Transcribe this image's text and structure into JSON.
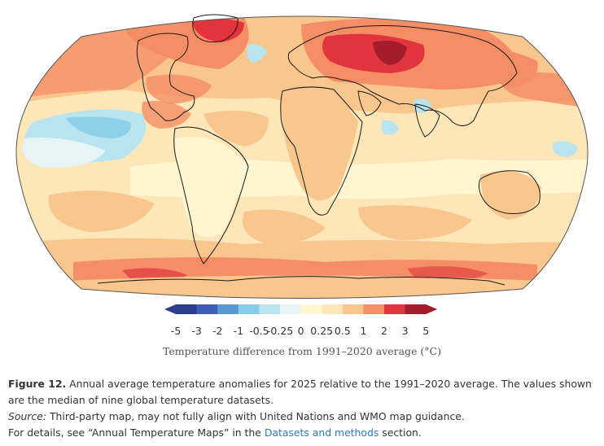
{
  "map": {
    "projection": "Robinson",
    "variable": "annual temperature anomaly 2025 vs 1991–2020",
    "colors": {
      "ocean_background": "#fde6b8",
      "coastline": "#1a1a1a",
      "outline": "#555555"
    }
  },
  "legend": {
    "tick_labels": [
      "-5",
      "-3",
      "-2",
      "-1",
      "-0.5",
      "-0.25",
      "0",
      "0.25",
      "0.5",
      "1",
      "2",
      "3",
      "5"
    ],
    "bins": [
      {
        "color": "#2f3d8f"
      },
      {
        "color": "#3f5fb4"
      },
      {
        "color": "#5b97d3"
      },
      {
        "color": "#86cdea"
      },
      {
        "color": "#b8e4ef"
      },
      {
        "color": "#e7f4f6"
      },
      {
        "color": "#fff6d0"
      },
      {
        "color": "#fde6b8"
      },
      {
        "color": "#f9c68e"
      },
      {
        "color": "#f58e65"
      },
      {
        "color": "#e1343d"
      },
      {
        "color": "#a31d2d"
      }
    ],
    "title": "Temperature difference from 1991–2020 average (°C)"
  },
  "caption": {
    "figure_label": "Figure 12.",
    "figure_text": " Annual average temperature anomalies for 2025 relative to the 1991–2020 average. The values shown are the median of nine global temperature datasets.",
    "source_label": "Source:",
    "source_text": " Third-party map, may not fully align with United Nations and WMO map guidance.",
    "details_before": "For details, see “Annual Temperature Maps” in the ",
    "details_link": "Datasets and methods",
    "details_after": " section."
  }
}
